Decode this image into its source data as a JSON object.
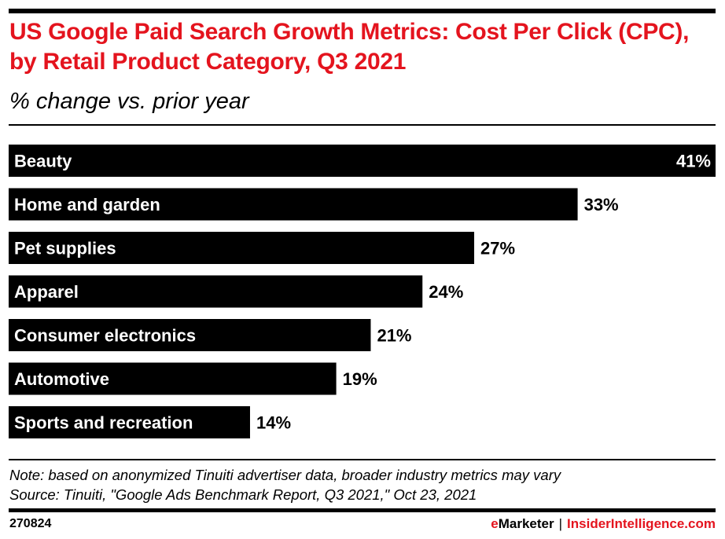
{
  "header": {
    "title": "US Google Paid Search Growth Metrics: Cost Per Click (CPC), by Retail Product Category, Q3 2021",
    "subtitle": "% change vs. prior year"
  },
  "chart_data": {
    "type": "bar",
    "orientation": "horizontal",
    "title": "US Google Paid Search Growth Metrics: Cost Per Click (CPC), by Retail Product Category, Q3 2021",
    "subtitle": "% change vs. prior year",
    "xlabel": "",
    "ylabel": "",
    "unit": "%",
    "categories": [
      "Beauty",
      "Home and garden",
      "Pet supplies",
      "Apparel",
      "Consumer electronics",
      "Automotive",
      "Sports and recreation"
    ],
    "values": [
      41,
      33,
      27,
      24,
      21,
      19,
      14
    ],
    "value_labels": [
      "41%",
      "33%",
      "27%",
      "24%",
      "21%",
      "19%",
      "14%"
    ],
    "xlim": [
      0,
      41
    ],
    "grid": false,
    "legend": "none",
    "bar_color": "#000000",
    "label_color_inside": "#ffffff"
  },
  "footer": {
    "note": "Note: based on anonymized Tinuiti advertiser data, broader industry metrics may vary",
    "source": "Source: Tinuiti, \"Google Ads Benchmark Report, Q3 2021,\" Oct 23, 2021",
    "chart_id": "270824",
    "brand_e": "e",
    "brand_marketer": "Marketer",
    "brand_separator": "|",
    "brand_site": "InsiderIntelligence.com"
  },
  "colors": {
    "accent": "#e4141e",
    "text": "#000000",
    "background": "#ffffff"
  }
}
